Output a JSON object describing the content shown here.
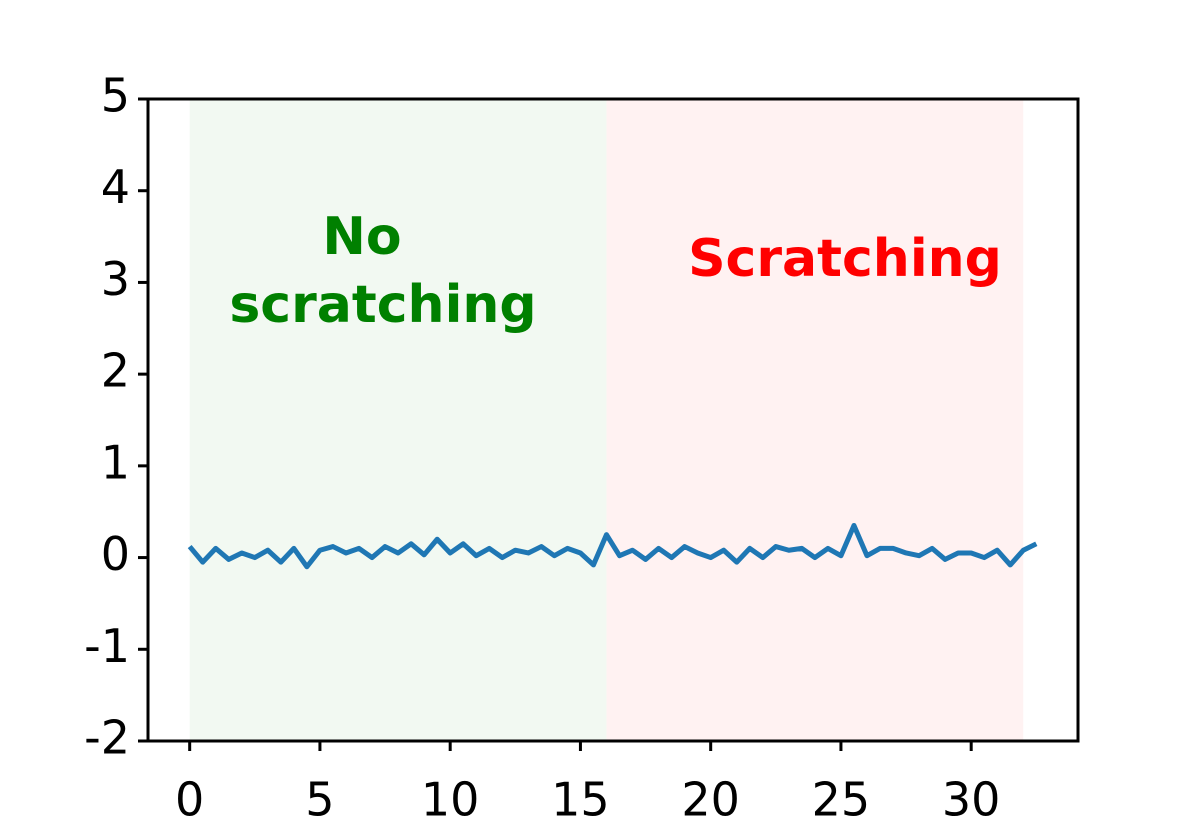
{
  "chart_data": {
    "type": "line",
    "x": [
      0,
      0.5,
      1,
      1.5,
      2,
      2.5,
      3,
      3.5,
      4,
      4.5,
      5,
      5.5,
      6,
      6.5,
      7,
      7.5,
      8,
      8.5,
      9,
      9.5,
      10,
      10.5,
      11,
      11.5,
      12,
      12.5,
      13,
      13.5,
      14,
      14.5,
      15,
      15.5,
      16,
      16.5,
      17,
      17.5,
      18,
      18.5,
      19,
      19.5,
      20,
      20.5,
      21,
      21.5,
      22,
      22.5,
      23,
      23.5,
      24,
      24.5,
      25,
      25.5,
      26,
      26.5,
      27,
      27.5,
      28,
      28.5,
      29,
      29.5,
      30,
      30.5,
      31,
      31.5,
      32,
      32.5
    ],
    "series": [
      {
        "color": "#1f77b4",
        "values": [
          0.12,
          -0.05,
          0.1,
          -0.02,
          0.05,
          0.0,
          0.08,
          -0.05,
          0.1,
          -0.1,
          0.08,
          0.12,
          0.05,
          0.1,
          0.0,
          0.12,
          0.05,
          0.15,
          0.03,
          0.2,
          0.05,
          0.15,
          0.02,
          0.1,
          0.0,
          0.08,
          0.05,
          0.12,
          0.02,
          0.1,
          0.05,
          -0.08,
          0.25,
          0.02,
          0.08,
          -0.02,
          0.1,
          0.0,
          0.12,
          0.05,
          0.0,
          0.08,
          -0.05,
          0.1,
          0.0,
          0.12,
          0.08,
          0.1,
          0.0,
          0.1,
          0.02,
          0.35,
          0.02,
          0.1,
          0.1,
          0.05,
          0.02,
          0.1,
          -0.02,
          0.05,
          0.05,
          0.0,
          0.08,
          -0.08,
          0.08,
          0.15
        ]
      }
    ],
    "spans": [
      {
        "x0": 0,
        "x1": 16,
        "color": "#008000"
      },
      {
        "x0": 16,
        "x1": 32,
        "color": "#ff0000"
      }
    ],
    "span_alpha": 0.05,
    "annotations": [
      {
        "lines": [
          "No",
          "scratching"
        ],
        "color": "#008000"
      },
      {
        "lines": [
          "Scratching"
        ],
        "color": "#ff0000"
      }
    ],
    "xlim": [
      -1.6,
      34.1
    ],
    "ylim": [
      -2,
      5
    ],
    "xticks": [
      0,
      5,
      10,
      15,
      20,
      25,
      30
    ],
    "yticks": [
      -2,
      -1,
      0,
      1,
      2,
      3,
      4,
      5
    ]
  }
}
